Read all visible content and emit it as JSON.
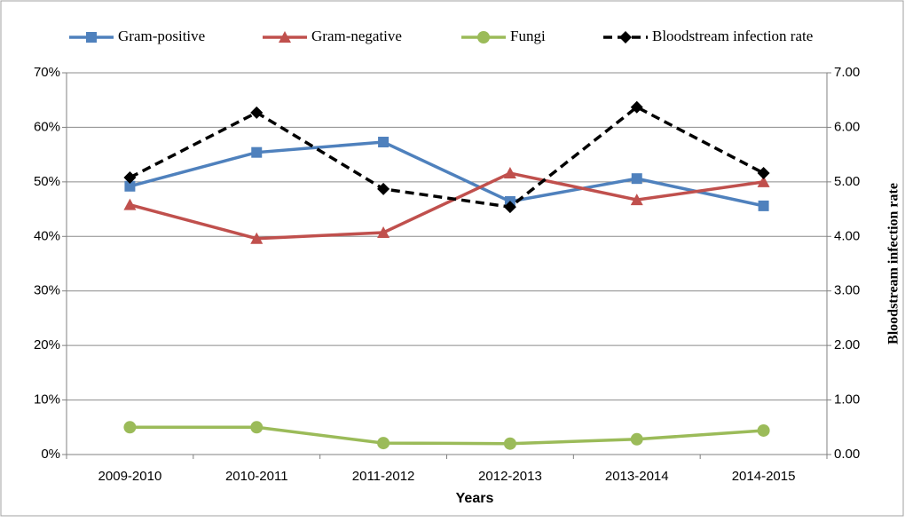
{
  "chart_data": {
    "type": "line",
    "x_label": "Years",
    "y2_label": "Bloodstream infection rate",
    "categories": [
      "2009-2010",
      "2010-2011",
      "2011-2012",
      "2012-2013",
      "2013-2014",
      "2014-2015"
    ],
    "series": [
      {
        "name": "Gram-positive",
        "color": "#4f81bd",
        "marker": "square",
        "dash": false,
        "values": [
          49.2,
          55.4,
          57.3,
          46.4,
          50.6,
          45.6
        ]
      },
      {
        "name": "Gram-negative",
        "color": "#c0504d",
        "marker": "triangle",
        "dash": false,
        "values": [
          45.8,
          39.6,
          40.7,
          51.6,
          46.7,
          50.0
        ]
      },
      {
        "name": "Fungi",
        "color": "#9bbb59",
        "marker": "circle",
        "dash": false,
        "values": [
          5.0,
          5.0,
          2.1,
          2.0,
          2.8,
          4.4
        ]
      },
      {
        "name": "Bloodstream infection rate",
        "color": "#000000",
        "marker": "diamond",
        "dash": true,
        "axis": "y2",
        "values": [
          5.08,
          6.27,
          4.87,
          4.54,
          6.37,
          5.16
        ]
      }
    ],
    "ylim": [
      0,
      70
    ],
    "yticks": [
      {
        "value": 0,
        "label": "0%"
      },
      {
        "value": 10,
        "label": "10%"
      },
      {
        "value": 20,
        "label": "20%"
      },
      {
        "value": 30,
        "label": "30%"
      },
      {
        "value": 40,
        "label": "40%"
      },
      {
        "value": 50,
        "label": "50%"
      },
      {
        "value": 60,
        "label": "60%"
      },
      {
        "value": 70,
        "label": "70%"
      }
    ],
    "y2lim": [
      0,
      7
    ],
    "y2ticks": [
      {
        "value": 0,
        "label": "0.00"
      },
      {
        "value": 1,
        "label": "1.00"
      },
      {
        "value": 2,
        "label": "2.00"
      },
      {
        "value": 3,
        "label": "3.00"
      },
      {
        "value": 4,
        "label": "4.00"
      },
      {
        "value": 5,
        "label": "5.00"
      },
      {
        "value": 6,
        "label": "6.00"
      },
      {
        "value": 7,
        "label": "7.00"
      }
    ],
    "grid": true,
    "legend": "top"
  }
}
